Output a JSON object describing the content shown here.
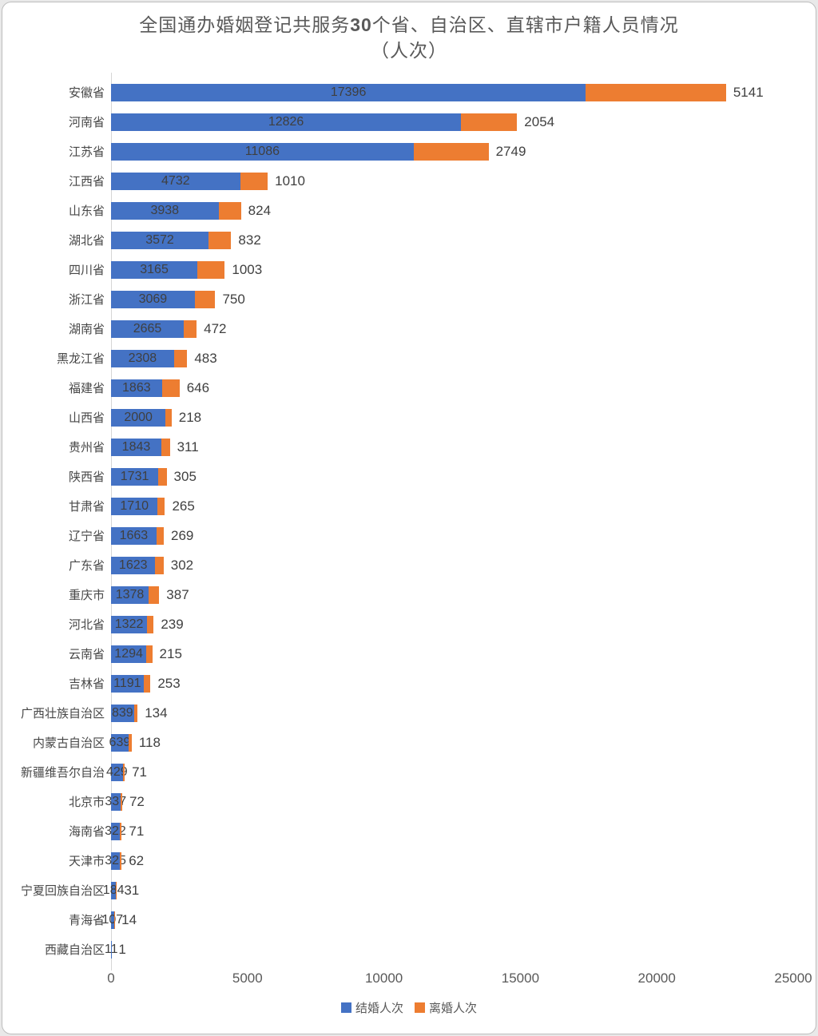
{
  "title": {
    "part1": "全国通办婚姻登记共服务",
    "part2": "30",
    "part3": "个省、自治区、直辖市户籍人员情况",
    "line2": "（人次）"
  },
  "colors": {
    "marriage_blue": "#4472C4",
    "divorce_orange": "#ED7D31",
    "axis_gray": "#d6d6d6",
    "text_gray": "#595959"
  },
  "chart_data": {
    "type": "bar",
    "orientation": "horizontal",
    "stacked": true,
    "title": "全国通办婚姻登记共服务30个省、自治区、直辖市户籍人员情况（人次）",
    "xlabel": "",
    "ylabel": "",
    "xlim": [
      0,
      25000
    ],
    "x_ticks": [
      0,
      5000,
      10000,
      15000,
      20000,
      25000
    ],
    "grid": false,
    "legend_position": "bottom",
    "categories": [
      "安徽省",
      "河南省",
      "江苏省",
      "江西省",
      "山东省",
      "湖北省",
      "四川省",
      "浙江省",
      "湖南省",
      "黑龙江省",
      "福建省",
      "山西省",
      "贵州省",
      "陕西省",
      "甘肃省",
      "辽宁省",
      "广东省",
      "重庆市",
      "河北省",
      "云南省",
      "吉林省",
      "广西壮族自治区",
      "内蒙古自治区",
      "新疆维吾尔自治",
      "北京市",
      "海南省",
      "天津市",
      "宁夏回族自治区",
      "青海省",
      "西藏自治区"
    ],
    "series": [
      {
        "name": "结婚人次",
        "color": "#4472C4",
        "values": [
          17396,
          12826,
          11086,
          4732,
          3938,
          3572,
          3165,
          3069,
          2665,
          2308,
          1863,
          2000,
          1843,
          1731,
          1710,
          1663,
          1623,
          1378,
          1322,
          1294,
          1191,
          839,
          639,
          429,
          337,
          322,
          325,
          184,
          107,
          11
        ]
      },
      {
        "name": "离婚人次",
        "color": "#ED7D31",
        "values": [
          5141,
          2054,
          2749,
          1010,
          824,
          832,
          1003,
          750,
          472,
          483,
          646,
          218,
          311,
          305,
          265,
          269,
          302,
          387,
          239,
          215,
          253,
          134,
          118,
          71,
          72,
          71,
          62,
          31,
          14,
          1
        ]
      }
    ]
  }
}
